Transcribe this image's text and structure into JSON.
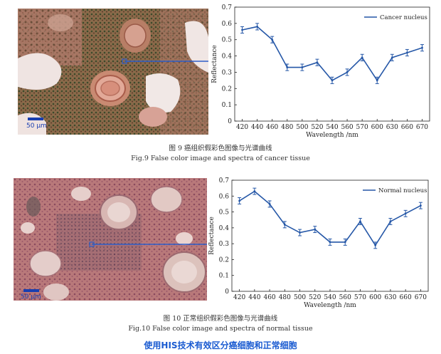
{
  "colors": {
    "series": "#2557a7",
    "scale_bar": "#1a3fb0",
    "footer": "#1a5bd1",
    "pointer_line": "#2f5ec9"
  },
  "figures": [
    {
      "scale_label": "50 μm",
      "caption_cn": "图 9   癌组织假彩色图像与光谱曲线",
      "caption_en": "Fig.9   False color image and spectra of cancer tissue"
    },
    {
      "scale_label": "50 μm",
      "caption_cn": "图 10   正常组织假彩色图像与光谱曲线",
      "caption_en": "Fig.10   False color image and spectra of normal tissue"
    }
  ],
  "footer_text": "使用HIS技术有效区分癌细胞和正常细胞",
  "chart_data": [
    {
      "type": "line",
      "title": "",
      "xlabel": "Wavelength /nm",
      "ylabel": "Reflectance",
      "categories": [
        "420",
        "440",
        "460",
        "480",
        "500",
        "520",
        "540",
        "560",
        "570",
        "600",
        "630",
        "660",
        "670"
      ],
      "ylim": [
        0,
        0.7
      ],
      "yticks": [
        "0",
        "0.1",
        "0.2",
        "0.3",
        "0.4",
        "0.5",
        "0.6",
        "0.7"
      ],
      "legend_position": "top-right",
      "grid": false,
      "error_bars": true,
      "series": [
        {
          "name": "Cancer nucleus",
          "values": [
            0.56,
            0.58,
            0.5,
            0.33,
            0.33,
            0.36,
            0.25,
            0.3,
            0.39,
            0.25,
            0.39,
            0.42,
            0.45
          ],
          "errors": [
            0.02,
            0.02,
            0.02,
            0.02,
            0.02,
            0.02,
            0.02,
            0.02,
            0.02,
            0.02,
            0.02,
            0.02,
            0.02
          ]
        }
      ]
    },
    {
      "type": "line",
      "title": "",
      "xlabel": "Wavelength /nm",
      "ylabel": "Reflectance",
      "categories": [
        "420",
        "440",
        "460",
        "480",
        "500",
        "520",
        "540",
        "560",
        "570",
        "600",
        "630",
        "660",
        "670"
      ],
      "ylim": [
        0,
        0.7
      ],
      "yticks": [
        "0",
        "0.1",
        "0.2",
        "0.3",
        "0.4",
        "0.5",
        "0.6",
        "0.7"
      ],
      "legend_position": "top-right",
      "grid": false,
      "error_bars": true,
      "series": [
        {
          "name": "Normal nucleus",
          "values": [
            0.57,
            0.63,
            0.55,
            0.42,
            0.37,
            0.39,
            0.31,
            0.31,
            0.44,
            0.29,
            0.44,
            0.49,
            0.54
          ],
          "errors": [
            0.02,
            0.02,
            0.02,
            0.02,
            0.02,
            0.02,
            0.02,
            0.02,
            0.02,
            0.02,
            0.02,
            0.02,
            0.02
          ]
        }
      ]
    }
  ]
}
